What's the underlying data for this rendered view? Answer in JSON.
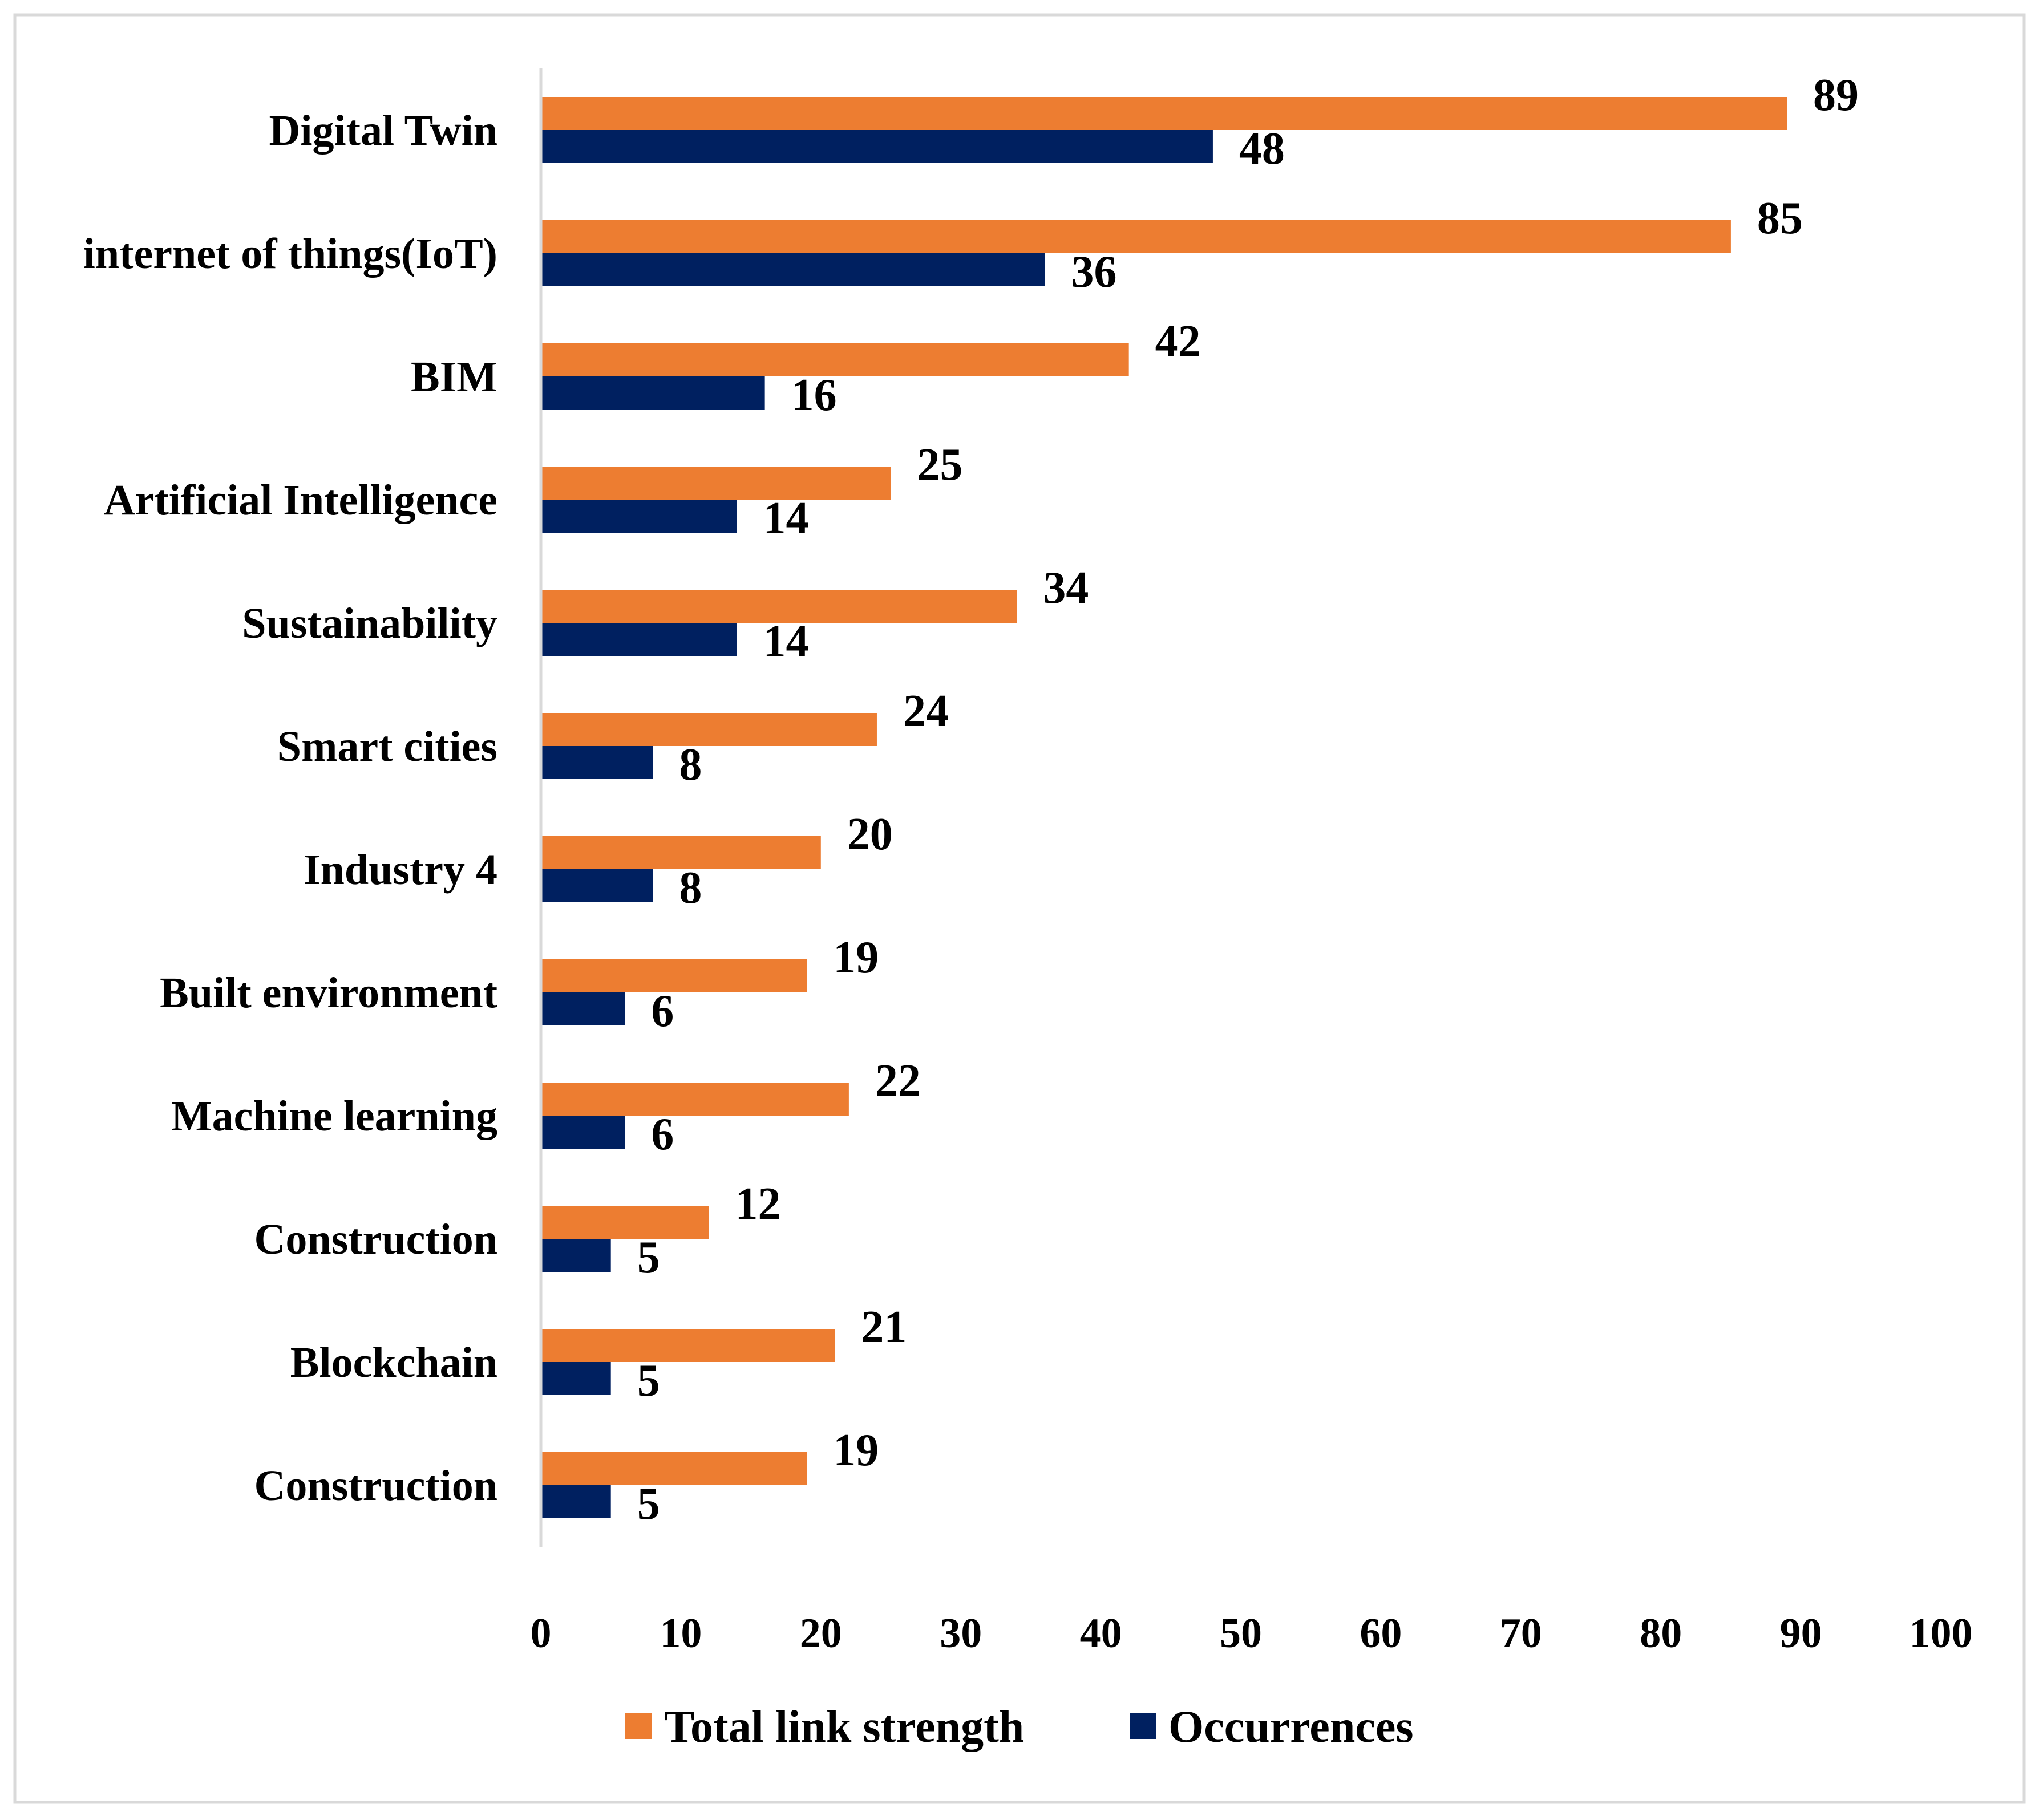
{
  "chart_data": {
    "type": "bar",
    "orientation": "horizontal",
    "title": "",
    "xlabel": "",
    "ylabel": "",
    "xlim": [
      0,
      100
    ],
    "x_ticks": [
      "0",
      "10",
      "20",
      "30",
      "40",
      "50",
      "60",
      "70",
      "80",
      "90",
      "100"
    ],
    "grid": false,
    "legend_position": "bottom",
    "categories": [
      "Digital Twin",
      "internet of things(IoT)",
      "BIM",
      "Artificial Intelligence",
      "Sustainability",
      "Smart cities",
      "Industry 4",
      "Built environment",
      "Machine learning",
      "Construction",
      "Blockchain",
      "Construction "
    ],
    "series": [
      {
        "name": "Total link strength",
        "color": "#ED7D31",
        "values": [
          89,
          85,
          42,
          25,
          34,
          24,
          20,
          19,
          22,
          12,
          21,
          19
        ]
      },
      {
        "name": "Occurrences",
        "color": "#002060",
        "values": [
          48,
          36,
          16,
          14,
          14,
          8,
          8,
          6,
          6,
          5,
          5,
          5
        ]
      }
    ]
  },
  "colors": {
    "frame": "#D9D9D9",
    "axis": "#D9D9D9"
  }
}
